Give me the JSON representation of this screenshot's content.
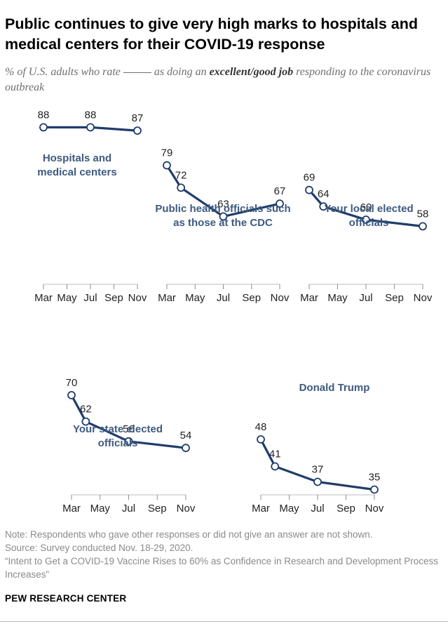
{
  "title": "Public continues to give very high marks to hospitals and medical centers for their COVID-19 response",
  "subtitle": {
    "pre": "% of U.S. adults who rate",
    "mid": "as doing an",
    "bold": "excellent/good job",
    "post": "responding to the coronavirus outbreak"
  },
  "notes": {
    "note": "Note: Respondents who gave other responses or did not give an answer are not shown.",
    "source": "Source: Survey conducted Nov. 18-29, 2020.",
    "report": "“Intent to Get a COVID-19 Vaccine Rises to 60% as Confidence in Research and Development Process Increases”"
  },
  "brand": "PEW RESEARCH CENTER",
  "colors": {
    "line": "#1f3d6b",
    "label": "#3d5a80",
    "text": "#222222",
    "axis": "#666666"
  },
  "chart_data": [
    {
      "type": "line",
      "series": [
        {
          "name": "Hospitals and medical centers",
          "values": [
            88,
            88,
            87
          ]
        }
      ],
      "x": [
        "Mar",
        "Jul",
        "Nov"
      ],
      "x_months": [
        3,
        7,
        11
      ],
      "tick_labels": [
        "Mar",
        "May",
        "Jul",
        "Sep",
        "Nov"
      ],
      "label_lines": [
        "Hospitals and",
        "medical centers"
      ],
      "ylim": [
        0,
        100
      ]
    },
    {
      "type": "line",
      "series": [
        {
          "name": "Public health officials such as those at the CDC",
          "values": [
            79,
            72,
            63,
            67
          ]
        }
      ],
      "x": [
        "Mar",
        "Apr",
        "Jul",
        "Nov"
      ],
      "x_months": [
        3,
        4,
        7,
        11
      ],
      "tick_labels": [
        "Mar",
        "May",
        "Jul",
        "Sep",
        "Nov"
      ],
      "label_lines": [
        "Public health officials such",
        "as those at the CDC"
      ],
      "ylim": [
        0,
        100
      ]
    },
    {
      "type": "line",
      "series": [
        {
          "name": "Your local elected officials",
          "values": [
            69,
            64,
            60,
            58
          ]
        }
      ],
      "x": [
        "Mar",
        "Apr",
        "Jul",
        "Nov"
      ],
      "x_months": [
        3,
        4,
        7,
        11
      ],
      "tick_labels": [
        "Mar",
        "May",
        "Jul",
        "Sep",
        "Nov"
      ],
      "label_lines": [
        "Your local elected",
        "officials"
      ],
      "ylim": [
        0,
        100
      ]
    },
    {
      "type": "line",
      "series": [
        {
          "name": "Your state elected officials",
          "values": [
            70,
            62,
            56,
            54
          ]
        }
      ],
      "x": [
        "Mar",
        "Apr",
        "Jul",
        "Nov"
      ],
      "x_months": [
        3,
        4,
        7,
        11
      ],
      "tick_labels": [
        "Mar",
        "May",
        "Jul",
        "Sep",
        "Nov"
      ],
      "label_lines": [
        "Your state elected",
        "officials"
      ],
      "ylim": [
        0,
        100
      ]
    },
    {
      "type": "line",
      "series": [
        {
          "name": "Donald Trump",
          "values": [
            48,
            41,
            37,
            35
          ]
        }
      ],
      "x": [
        "Mar",
        "Apr",
        "Jul",
        "Nov"
      ],
      "x_months": [
        3,
        4,
        7,
        11
      ],
      "tick_labels": [
        "Mar",
        "May",
        "Jul",
        "Sep",
        "Nov"
      ],
      "label_lines": [
        "Donald Trump"
      ],
      "ylim": [
        0,
        100
      ]
    }
  ]
}
